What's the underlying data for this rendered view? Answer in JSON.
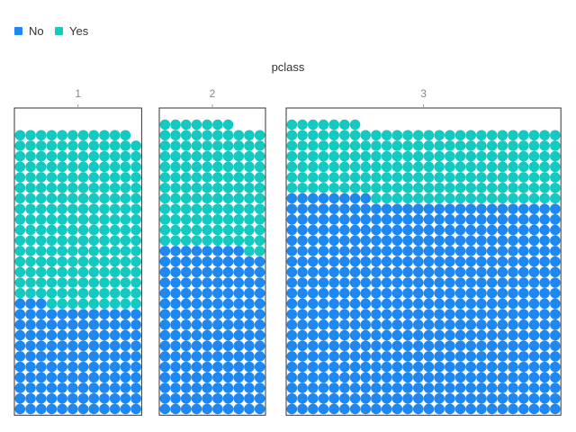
{
  "chart_data": {
    "type": "waffle",
    "title": "pclass",
    "legend": {
      "placement": "top-left",
      "items": [
        {
          "label": "No",
          "color": "#1f88f0"
        },
        {
          "label": "Yes",
          "color": "#13c9c0"
        }
      ]
    },
    "facets": [
      {
        "label": "1",
        "columns": 12,
        "no": 123,
        "yes": 200
      },
      {
        "label": "2",
        "columns": 10,
        "no": 158,
        "yes": 119
      },
      {
        "label": "3",
        "columns": 26,
        "no": 528,
        "yes": 181
      }
    ],
    "fill_order": "bottom-to-top, left-to-right; No first, then Yes",
    "colors": {
      "no": "#1f88f0",
      "yes": "#13c9c0",
      "frame": "#333333"
    }
  }
}
